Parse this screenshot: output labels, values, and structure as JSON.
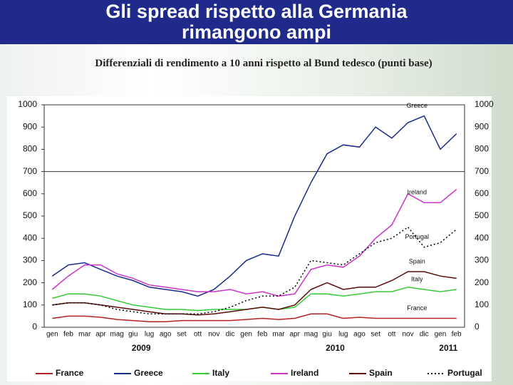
{
  "chart_data": {
    "type": "line",
    "title": "Gli spread rispetto alla Germania rimangono ampi",
    "subtitle": "Differenziali di rendimento a 10 anni rispetto al Bund tedesco (punti base)",
    "categories": [
      "gen",
      "feb",
      "mar",
      "apr",
      "mag",
      "giu",
      "lug",
      "ago",
      "set",
      "ott",
      "nov",
      "dic",
      "gen",
      "feb",
      "mar",
      "apr",
      "mag",
      "giu",
      "lug",
      "ago",
      "set",
      "ott",
      "nov",
      "dic",
      "gen",
      "feb"
    ],
    "years": [
      "2009",
      "2010",
      "2011"
    ],
    "ylim": [
      0,
      1000
    ],
    "yticks": [
      0,
      100,
      200,
      300,
      400,
      500,
      600,
      700,
      800,
      900,
      1000
    ],
    "hlines": [
      700
    ],
    "series": [
      {
        "name": "France",
        "color": "#b22222",
        "style": "solid",
        "values": [
          40,
          50,
          50,
          45,
          35,
          30,
          25,
          25,
          30,
          30,
          30,
          30,
          35,
          40,
          35,
          40,
          60,
          60,
          40,
          45,
          40,
          40,
          40,
          40,
          40,
          40
        ]
      },
      {
        "name": "Greece",
        "color": "#1a2a8c",
        "style": "solid",
        "values": [
          230,
          280,
          290,
          260,
          230,
          210,
          180,
          170,
          160,
          140,
          170,
          230,
          300,
          330,
          320,
          500,
          650,
          780,
          820,
          810,
          900,
          850,
          920,
          950,
          800,
          870
        ]
      },
      {
        "name": "Italy",
        "color": "#33cc33",
        "style": "solid",
        "values": [
          130,
          150,
          150,
          140,
          120,
          100,
          90,
          80,
          80,
          75,
          80,
          80,
          80,
          90,
          80,
          90,
          150,
          150,
          140,
          150,
          160,
          160,
          180,
          170,
          160,
          170
        ]
      },
      {
        "name": "Ireland",
        "color": "#cc33cc",
        "style": "solid",
        "values": [
          170,
          230,
          280,
          280,
          240,
          220,
          190,
          180,
          170,
          160,
          160,
          170,
          150,
          160,
          140,
          150,
          260,
          280,
          270,
          320,
          400,
          460,
          600,
          560,
          560,
          620
        ]
      },
      {
        "name": "Spain",
        "color": "#5a0a0a",
        "style": "solid",
        "values": [
          100,
          110,
          110,
          100,
          90,
          80,
          70,
          60,
          60,
          55,
          60,
          70,
          80,
          90,
          80,
          100,
          170,
          200,
          170,
          180,
          180,
          210,
          250,
          250,
          230,
          220
        ]
      },
      {
        "name": "Portugal",
        "color": "#000000",
        "style": "dotted",
        "values": [
          100,
          110,
          110,
          100,
          80,
          70,
          60,
          60,
          60,
          60,
          70,
          90,
          120,
          140,
          140,
          180,
          300,
          290,
          280,
          330,
          380,
          400,
          450,
          360,
          380,
          440
        ]
      }
    ]
  }
}
